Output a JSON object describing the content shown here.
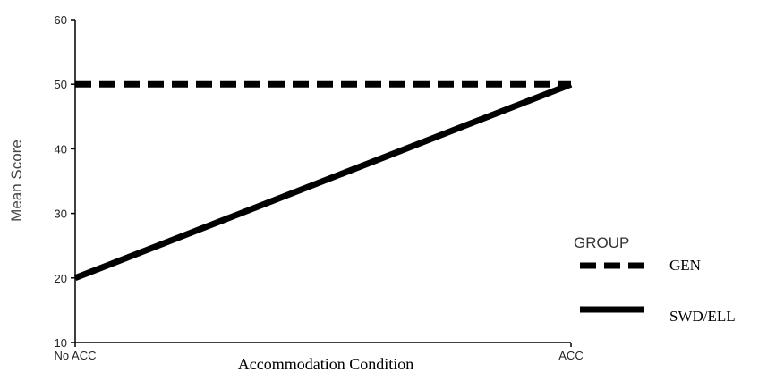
{
  "chart_data": {
    "type": "line",
    "x": [
      "No ACC",
      "ACC"
    ],
    "xlabel": "Accommodation Condition",
    "ylabel": "Mean Score",
    "ylim": [
      10,
      60
    ],
    "yticks": [
      10,
      20,
      30,
      40,
      50,
      60
    ],
    "grid": false,
    "legend": {
      "title": "GROUP",
      "placement": "right"
    },
    "series": [
      {
        "name": "GEN",
        "values": [
          50,
          50
        ],
        "style": "dashed",
        "color": "#000000"
      },
      {
        "name": "SWD/ELL",
        "values": [
          20,
          50
        ],
        "style": "solid",
        "color": "#000000"
      }
    ]
  }
}
